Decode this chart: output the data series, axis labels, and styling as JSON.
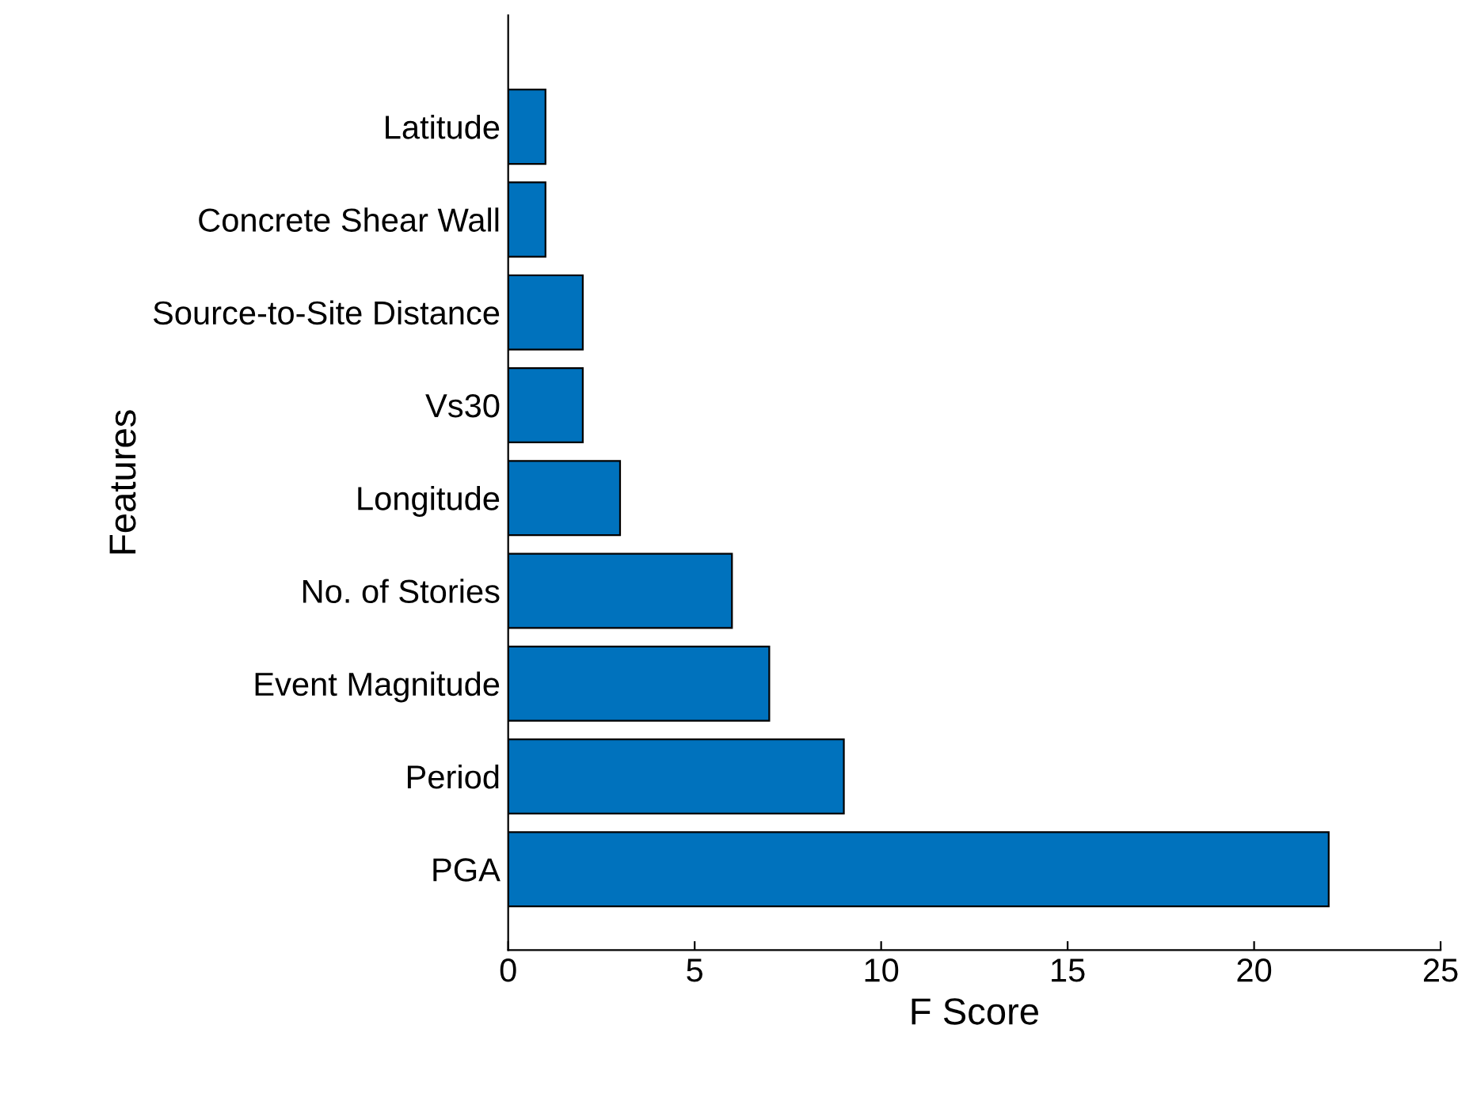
{
  "chart_data": {
    "type": "bar",
    "orientation": "horizontal",
    "xlabel": "F Score",
    "ylabel": "Features",
    "categories": [
      "Latitude",
      "Concrete Shear Wall",
      "Source-to-Site Distance",
      "Vs30",
      "Longitude",
      "No. of Stories",
      "Event Magnitude",
      "Period",
      "PGA"
    ],
    "values": [
      1,
      1,
      2,
      2,
      3,
      6,
      7,
      9,
      22
    ],
    "color": "#0072bd",
    "xlim": [
      0,
      25
    ],
    "xticks": [
      0,
      5,
      10,
      15,
      20,
      25
    ],
    "grid": false,
    "legend": false
  }
}
